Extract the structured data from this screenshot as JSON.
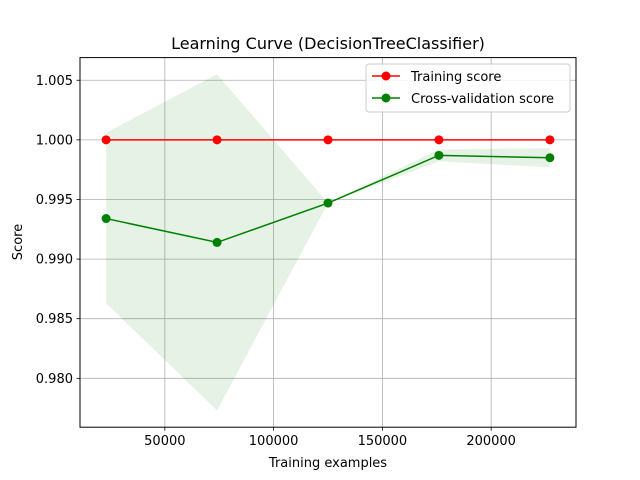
{
  "chart_data": {
    "type": "line",
    "title": "Learning Curve (DecisionTreeClassifier)",
    "xlabel": "Training examples",
    "ylabel": "Score",
    "xlim": [
      11000,
      239000
    ],
    "ylim": [
      0.9759,
      1.0069
    ],
    "grid": true,
    "legend_position": "top-right",
    "x": [
      23000,
      74000,
      125000,
      176000,
      227000
    ],
    "x_ticks": [
      50000,
      100000,
      150000,
      200000
    ],
    "y_ticks": [
      0.98,
      0.985,
      0.99,
      0.995,
      1.0,
      1.005
    ],
    "series": [
      {
        "name": "Training score",
        "color": "#ff0000",
        "values": [
          1.0,
          1.0,
          1.0,
          1.0,
          1.0
        ],
        "band_lower": [
          1.0,
          1.0,
          1.0,
          1.0,
          1.0
        ],
        "band_upper": [
          1.0,
          1.0,
          1.0,
          1.0,
          1.0
        ]
      },
      {
        "name": "Cross-validation score",
        "color": "#008000",
        "values": [
          0.9934,
          0.9914,
          0.9947,
          0.9987,
          0.9985
        ],
        "band_lower": [
          0.9863,
          0.9773,
          0.9947,
          0.9982,
          0.9977
        ],
        "band_upper": [
          1.0006,
          1.0055,
          0.9947,
          0.9992,
          0.9993
        ]
      }
    ]
  }
}
